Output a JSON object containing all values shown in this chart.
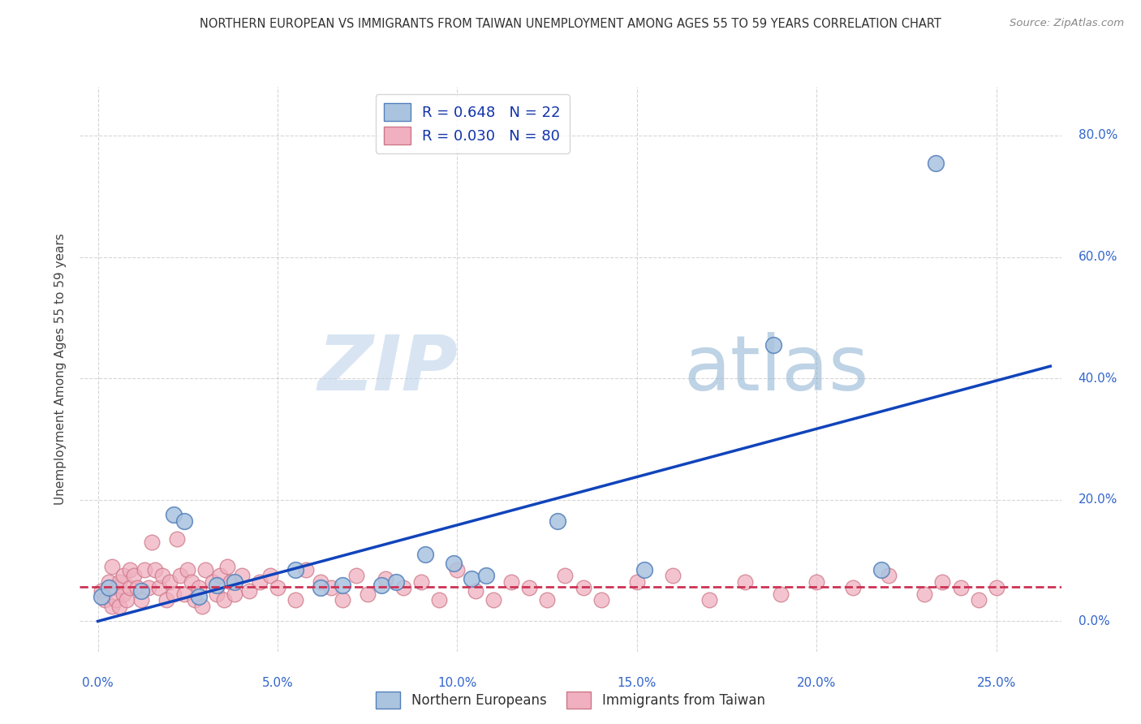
{
  "title": "NORTHERN EUROPEAN VS IMMIGRANTS FROM TAIWAN UNEMPLOYMENT AMONG AGES 55 TO 59 YEARS CORRELATION CHART",
  "source": "Source: ZipAtlas.com",
  "xlabel_vals": [
    0.0,
    0.05,
    0.1,
    0.15,
    0.2,
    0.25
  ],
  "ylabel_vals": [
    0.0,
    0.2,
    0.4,
    0.6,
    0.8
  ],
  "ylabel_label": "Unemployment Among Ages 55 to 59 years",
  "xlim": [
    -0.005,
    0.268
  ],
  "ylim": [
    -0.05,
    0.88
  ],
  "watermark_zip": "ZIP",
  "watermark_atlas": "atlas",
  "blue_scatter_x": [
    0.001,
    0.003,
    0.012,
    0.021,
    0.024,
    0.028,
    0.033,
    0.038,
    0.055,
    0.062,
    0.068,
    0.079,
    0.083,
    0.091,
    0.099,
    0.104,
    0.108,
    0.128,
    0.152,
    0.188,
    0.218,
    0.233
  ],
  "blue_scatter_y": [
    0.04,
    0.055,
    0.05,
    0.175,
    0.165,
    0.04,
    0.06,
    0.065,
    0.085,
    0.055,
    0.06,
    0.06,
    0.065,
    0.11,
    0.095,
    0.07,
    0.075,
    0.165,
    0.085,
    0.455,
    0.085,
    0.755
  ],
  "pink_scatter_x": [
    0.001,
    0.002,
    0.003,
    0.004,
    0.004,
    0.005,
    0.005,
    0.006,
    0.006,
    0.007,
    0.007,
    0.008,
    0.009,
    0.009,
    0.01,
    0.011,
    0.012,
    0.013,
    0.014,
    0.015,
    0.016,
    0.017,
    0.018,
    0.019,
    0.02,
    0.021,
    0.022,
    0.023,
    0.024,
    0.025,
    0.026,
    0.027,
    0.028,
    0.029,
    0.03,
    0.032,
    0.033,
    0.034,
    0.035,
    0.036,
    0.037,
    0.038,
    0.04,
    0.042,
    0.045,
    0.048,
    0.05,
    0.055,
    0.058,
    0.062,
    0.065,
    0.068,
    0.072,
    0.075,
    0.08,
    0.085,
    0.09,
    0.095,
    0.1,
    0.105,
    0.11,
    0.115,
    0.12,
    0.125,
    0.13,
    0.135,
    0.14,
    0.15,
    0.16,
    0.17,
    0.18,
    0.19,
    0.2,
    0.21,
    0.22,
    0.23,
    0.235,
    0.24,
    0.245,
    0.25
  ],
  "pink_scatter_y": [
    0.05,
    0.035,
    0.065,
    0.025,
    0.09,
    0.055,
    0.035,
    0.065,
    0.025,
    0.075,
    0.045,
    0.035,
    0.085,
    0.055,
    0.075,
    0.055,
    0.035,
    0.085,
    0.055,
    0.13,
    0.085,
    0.055,
    0.075,
    0.035,
    0.065,
    0.045,
    0.135,
    0.075,
    0.045,
    0.085,
    0.065,
    0.035,
    0.055,
    0.025,
    0.085,
    0.065,
    0.045,
    0.075,
    0.035,
    0.09,
    0.065,
    0.045,
    0.075,
    0.05,
    0.065,
    0.075,
    0.055,
    0.035,
    0.085,
    0.065,
    0.055,
    0.035,
    0.075,
    0.045,
    0.07,
    0.055,
    0.065,
    0.035,
    0.085,
    0.05,
    0.035,
    0.065,
    0.055,
    0.035,
    0.075,
    0.055,
    0.035,
    0.065,
    0.075,
    0.035,
    0.065,
    0.045,
    0.065,
    0.055,
    0.075,
    0.045,
    0.065,
    0.055,
    0.035,
    0.055
  ],
  "blue_line_x0": 0.0,
  "blue_line_y0": 0.0,
  "blue_line_x1": 0.265,
  "blue_line_y1": 0.42,
  "pink_line_x0": -0.005,
  "pink_line_x1": 0.268,
  "pink_line_y": 0.056,
  "background_color": "#ffffff",
  "grid_color": "#bbbbbb",
  "title_color": "#333333",
  "blue_scatter_color": "#aac4e0",
  "blue_scatter_edge": "#5580bb",
  "pink_scatter_color": "#f0b0c0",
  "pink_scatter_edge": "#cc7788",
  "blue_line_color": "#1144bb",
  "pink_line_color": "#cc3355"
}
